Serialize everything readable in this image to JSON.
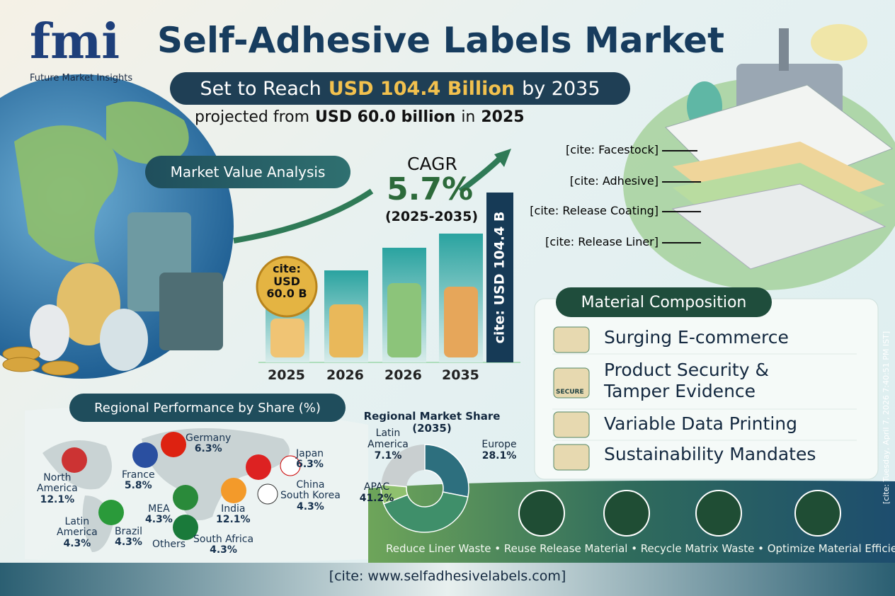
{
  "logo": {
    "mark": "fmi",
    "name": "Future Market Insights"
  },
  "header": {
    "title": "Self-Adhesive Labels Market",
    "subtitle": {
      "lead": "Set to Reach",
      "highlight": "USD 104.4 Billion",
      "tail": "by 2035"
    },
    "projection": {
      "lead": "projected from",
      "value": "USD 60.0 billion",
      "mid": "in",
      "year": "2025"
    }
  },
  "market_value": {
    "heading": "Market Value Analysis",
    "cagr": {
      "label": "CAGR",
      "value": "5.7%",
      "period": "(2025-2035)"
    },
    "start_badge": [
      "cite:",
      "USD",
      "60.0 B"
    ],
    "end_badge": "cite: USD 104.4 B",
    "years": [
      "2025",
      "2026",
      "2026",
      "2035"
    ]
  },
  "layers": [
    "[cite: Facestock]",
    "[cite: Adhesive]",
    "[cite: Release Coating]",
    "[cite: Release Liner]"
  ],
  "material_composition": {
    "heading": "Material Composition",
    "icon_text": "SECURE",
    "items": [
      [
        "Surging E-commerce"
      ],
      [
        "Product Security &",
        "Tamper Evidence"
      ],
      [
        "Variable Data Printing"
      ],
      [
        "Sustainability Mandates"
      ]
    ]
  },
  "regional": {
    "heading": "Regional Performance by Share (%)",
    "regions": [
      {
        "name": [
          "North",
          "America"
        ],
        "share": "12.1%"
      },
      {
        "name": [
          "France"
        ],
        "share": "5.8%"
      },
      {
        "name": [
          "Germany"
        ],
        "share": "6.3%"
      },
      {
        "name": [
          "Japan"
        ],
        "share": "6.3%"
      },
      {
        "name": [
          "China",
          "South Korea"
        ],
        "share": "4.3%"
      },
      {
        "name": [
          "India"
        ],
        "share": "12.1%"
      },
      {
        "name": [
          "MEA"
        ],
        "share": "4.3%"
      },
      {
        "name": [
          "Latin",
          "America"
        ],
        "share": "4.3%"
      },
      {
        "name": [
          "Brazil"
        ],
        "share": "4.3%"
      },
      {
        "name": [
          "Others"
        ],
        "share": null
      },
      {
        "name": [
          "South Africa"
        ],
        "share": "4.3%"
      }
    ]
  },
  "chart_data": {
    "type": "pie",
    "title": [
      "Regional Market Share",
      "(2035)"
    ],
    "categories": [
      "Europe",
      "APAC",
      [
        "Latin",
        "America"
      ]
    ],
    "values": [
      28.1,
      41.2,
      7.1
    ],
    "value_labels": [
      "28.1%",
      "41.2%",
      "7.1%"
    ],
    "colors": [
      "#2d6f7e",
      "#3f8f6a",
      "#8fc06e"
    ]
  },
  "sustainability": "Reduce Liner Waste • Reuse Release Material • Recycle Matrix Waste • Optimize Material Efficiency",
  "footer": "[cite: www.selfadhesivelabels.com]",
  "timestamp": "[cite: Tuesday, April 7, 2026 7:40:51 PM IST]"
}
